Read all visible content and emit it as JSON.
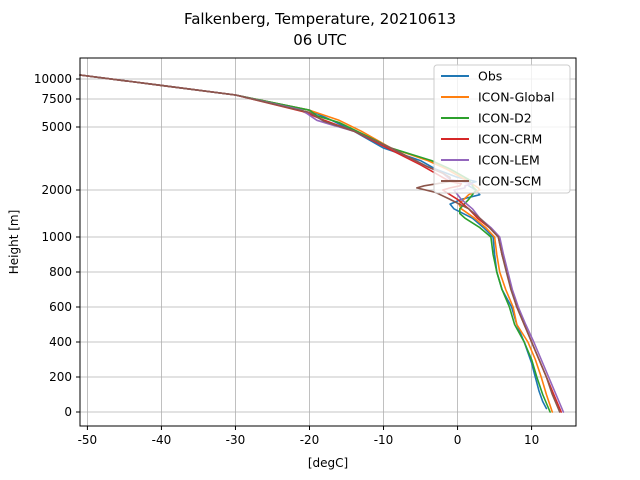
{
  "chart_data": {
    "type": "line",
    "title": "Falkenberg, Temperature, 20210613",
    "subtitle": "06 UTC",
    "xlabel": "[degC]",
    "ylabel": "Height [m]",
    "xlim": [
      -51,
      16
    ],
    "grid": true,
    "legend_position": "top-right",
    "x_ticks": [
      {
        "value": -50,
        "label": "-50"
      },
      {
        "value": -40,
        "label": "-40"
      },
      {
        "value": -30,
        "label": "-30"
      },
      {
        "value": -20,
        "label": "-20"
      },
      {
        "value": -10,
        "label": "-10"
      },
      {
        "value": 0,
        "label": "0"
      },
      {
        "value": 10,
        "label": "10"
      }
    ],
    "y_ticks": [
      {
        "value": 0,
        "label": "0"
      },
      {
        "value": 200,
        "label": "200"
      },
      {
        "value": 400,
        "label": "400"
      },
      {
        "value": 600,
        "label": "600"
      },
      {
        "value": 800,
        "label": "800"
      },
      {
        "value": 1000,
        "label": "1000"
      },
      {
        "value": 2000,
        "label": "2000"
      },
      {
        "value": 5000,
        "label": "5000"
      },
      {
        "value": 7500,
        "label": "7500"
      },
      {
        "value": 10000,
        "label": "10000"
      }
    ],
    "series": [
      {
        "name": "Obs",
        "color": "#1f77b4",
        "points": [
          [
            12.0,
            20
          ],
          [
            11.5,
            60
          ],
          [
            11.0,
            120
          ],
          [
            10.5,
            200
          ],
          [
            10.0,
            280
          ],
          [
            9.0,
            400
          ],
          [
            8.0,
            500
          ],
          [
            7.3,
            600
          ],
          [
            6.0,
            700
          ],
          [
            5.3,
            800
          ],
          [
            5.0,
            900
          ],
          [
            4.8,
            1000
          ],
          [
            3.5,
            1200
          ],
          [
            2.0,
            1400
          ],
          [
            -0.5,
            1600
          ],
          [
            -1.0,
            1700
          ],
          [
            0.5,
            1800
          ],
          [
            3.0,
            1900
          ],
          [
            2.5,
            2000
          ],
          [
            1.5,
            2200
          ],
          [
            1.5,
            2300
          ],
          [
            2.5,
            2400
          ],
          [
            0.0,
            2600
          ],
          [
            -3.0,
            3000
          ],
          [
            -5.0,
            3400
          ],
          [
            -10.0,
            4000
          ],
          [
            -14.0,
            4800
          ],
          [
            -17.0,
            5600
          ],
          [
            -19.0,
            6200
          ],
          [
            -20.0,
            6500
          ],
          [
            -30.0,
            8000
          ],
          [
            -40.0,
            9200
          ],
          [
            -51.0,
            10500
          ]
        ]
      },
      {
        "name": "ICON-Global",
        "color": "#ff7f0e",
        "points": [
          [
            12.8,
            0
          ],
          [
            12.0,
            100
          ],
          [
            11.3,
            200
          ],
          [
            10.5,
            300
          ],
          [
            9.5,
            400
          ],
          [
            8.0,
            500
          ],
          [
            7.5,
            600
          ],
          [
            6.5,
            700
          ],
          [
            5.7,
            800
          ],
          [
            5.3,
            900
          ],
          [
            5.0,
            1000
          ],
          [
            3.8,
            1200
          ],
          [
            2.3,
            1400
          ],
          [
            0.5,
            1600
          ],
          [
            0.2,
            1700
          ],
          [
            1.5,
            1900
          ],
          [
            3.0,
            2000
          ],
          [
            2.8,
            2100
          ],
          [
            1.0,
            2500
          ],
          [
            -1.5,
            3000
          ],
          [
            -4.0,
            3400
          ],
          [
            -9.0,
            4000
          ],
          [
            -13.0,
            4800
          ],
          [
            -16.0,
            5600
          ],
          [
            -20.0,
            6500
          ],
          [
            -30.0,
            8000
          ],
          [
            -40.0,
            9200
          ],
          [
            -51.0,
            10500
          ]
        ]
      },
      {
        "name": "ICON-D2",
        "color": "#2ca02c",
        "points": [
          [
            12.5,
            0
          ],
          [
            11.5,
            100
          ],
          [
            10.7,
            200
          ],
          [
            10.0,
            300
          ],
          [
            9.0,
            400
          ],
          [
            7.7,
            500
          ],
          [
            7.0,
            600
          ],
          [
            6.0,
            700
          ],
          [
            5.3,
            800
          ],
          [
            4.8,
            900
          ],
          [
            4.5,
            1000
          ],
          [
            3.0,
            1200
          ],
          [
            1.0,
            1400
          ],
          [
            0.3,
            1500
          ],
          [
            0.3,
            1600
          ],
          [
            1.5,
            1800
          ],
          [
            2.5,
            2000
          ],
          [
            2.2,
            2100
          ],
          [
            1.5,
            2500
          ],
          [
            -1.0,
            3000
          ],
          [
            -3.5,
            3400
          ],
          [
            -9.0,
            4000
          ],
          [
            -13.0,
            4700
          ],
          [
            -16.0,
            5400
          ],
          [
            -19.0,
            6000
          ],
          [
            -20.0,
            6500
          ],
          [
            -30.0,
            8000
          ],
          [
            -40.0,
            9200
          ],
          [
            -51.0,
            10500
          ]
        ]
      },
      {
        "name": "ICON-CRM",
        "color": "#d62728",
        "points": [
          [
            14.0,
            0
          ],
          [
            13.0,
            100
          ],
          [
            12.0,
            200
          ],
          [
            11.0,
            300
          ],
          [
            10.0,
            400
          ],
          [
            9.0,
            500
          ],
          [
            8.0,
            600
          ],
          [
            7.3,
            700
          ],
          [
            6.7,
            800
          ],
          [
            6.0,
            900
          ],
          [
            5.5,
            1000
          ],
          [
            4.3,
            1200
          ],
          [
            2.7,
            1400
          ],
          [
            1.5,
            1600
          ],
          [
            0.0,
            1800
          ],
          [
            -2.0,
            2000
          ],
          [
            -1.0,
            2100
          ],
          [
            0.3,
            2200
          ],
          [
            0.5,
            2300
          ],
          [
            -1.0,
            2400
          ],
          [
            -2.0,
            2600
          ],
          [
            -3.0,
            2800
          ],
          [
            -5.0,
            3200
          ],
          [
            -9.5,
            4000
          ],
          [
            -14.0,
            4800
          ],
          [
            -18.0,
            5600
          ],
          [
            -21.0,
            6400
          ],
          [
            -30.0,
            8000
          ],
          [
            -40.0,
            9200
          ],
          [
            -51.0,
            10500
          ]
        ]
      },
      {
        "name": "ICON-LEM",
        "color": "#9467bd",
        "points": [
          [
            14.3,
            0
          ],
          [
            13.3,
            100
          ],
          [
            12.3,
            200
          ],
          [
            11.3,
            300
          ],
          [
            10.3,
            400
          ],
          [
            9.2,
            500
          ],
          [
            8.2,
            600
          ],
          [
            7.4,
            700
          ],
          [
            6.8,
            800
          ],
          [
            6.2,
            900
          ],
          [
            5.7,
            1000
          ],
          [
            4.5,
            1200
          ],
          [
            3.0,
            1400
          ],
          [
            2.0,
            1600
          ],
          [
            0.5,
            1800
          ],
          [
            -0.5,
            2000
          ],
          [
            1.0,
            2100
          ],
          [
            1.0,
            2200
          ],
          [
            2.0,
            2300
          ],
          [
            -1.0,
            2500
          ],
          [
            -2.0,
            2800
          ],
          [
            -4.0,
            3100
          ],
          [
            -9.0,
            4000
          ],
          [
            -14.0,
            4800
          ],
          [
            -17.0,
            5200
          ],
          [
            -19.0,
            5600
          ],
          [
            -21.0,
            6500
          ],
          [
            -30.0,
            8000
          ],
          [
            -40.0,
            9200
          ],
          [
            -51.0,
            10500
          ]
        ]
      },
      {
        "name": "ICON-SCM",
        "color": "#8c564b",
        "points": [
          [
            13.8,
            0
          ],
          [
            12.8,
            100
          ],
          [
            12.0,
            200
          ],
          [
            11.0,
            300
          ],
          [
            10.0,
            400
          ],
          [
            9.0,
            500
          ],
          [
            8.0,
            600
          ],
          [
            7.2,
            700
          ],
          [
            6.6,
            800
          ],
          [
            6.0,
            900
          ],
          [
            5.5,
            1000
          ],
          [
            4.3,
            1200
          ],
          [
            3.0,
            1400
          ],
          [
            1.5,
            1600
          ],
          [
            -1.0,
            1800
          ],
          [
            -3.0,
            1950
          ],
          [
            -5.5,
            2100
          ],
          [
            -4.5,
            2200
          ],
          [
            -1.0,
            2400
          ],
          [
            -1.0,
            2600
          ],
          [
            -2.0,
            2800
          ],
          [
            -4.0,
            3100
          ],
          [
            -9.0,
            4000
          ],
          [
            -14.0,
            4800
          ],
          [
            -18.0,
            5500
          ],
          [
            -20.0,
            6300
          ],
          [
            -22.0,
            6600
          ],
          [
            -30.0,
            8000
          ],
          [
            -40.0,
            9200
          ],
          [
            -51.0,
            10500
          ]
        ]
      }
    ]
  }
}
